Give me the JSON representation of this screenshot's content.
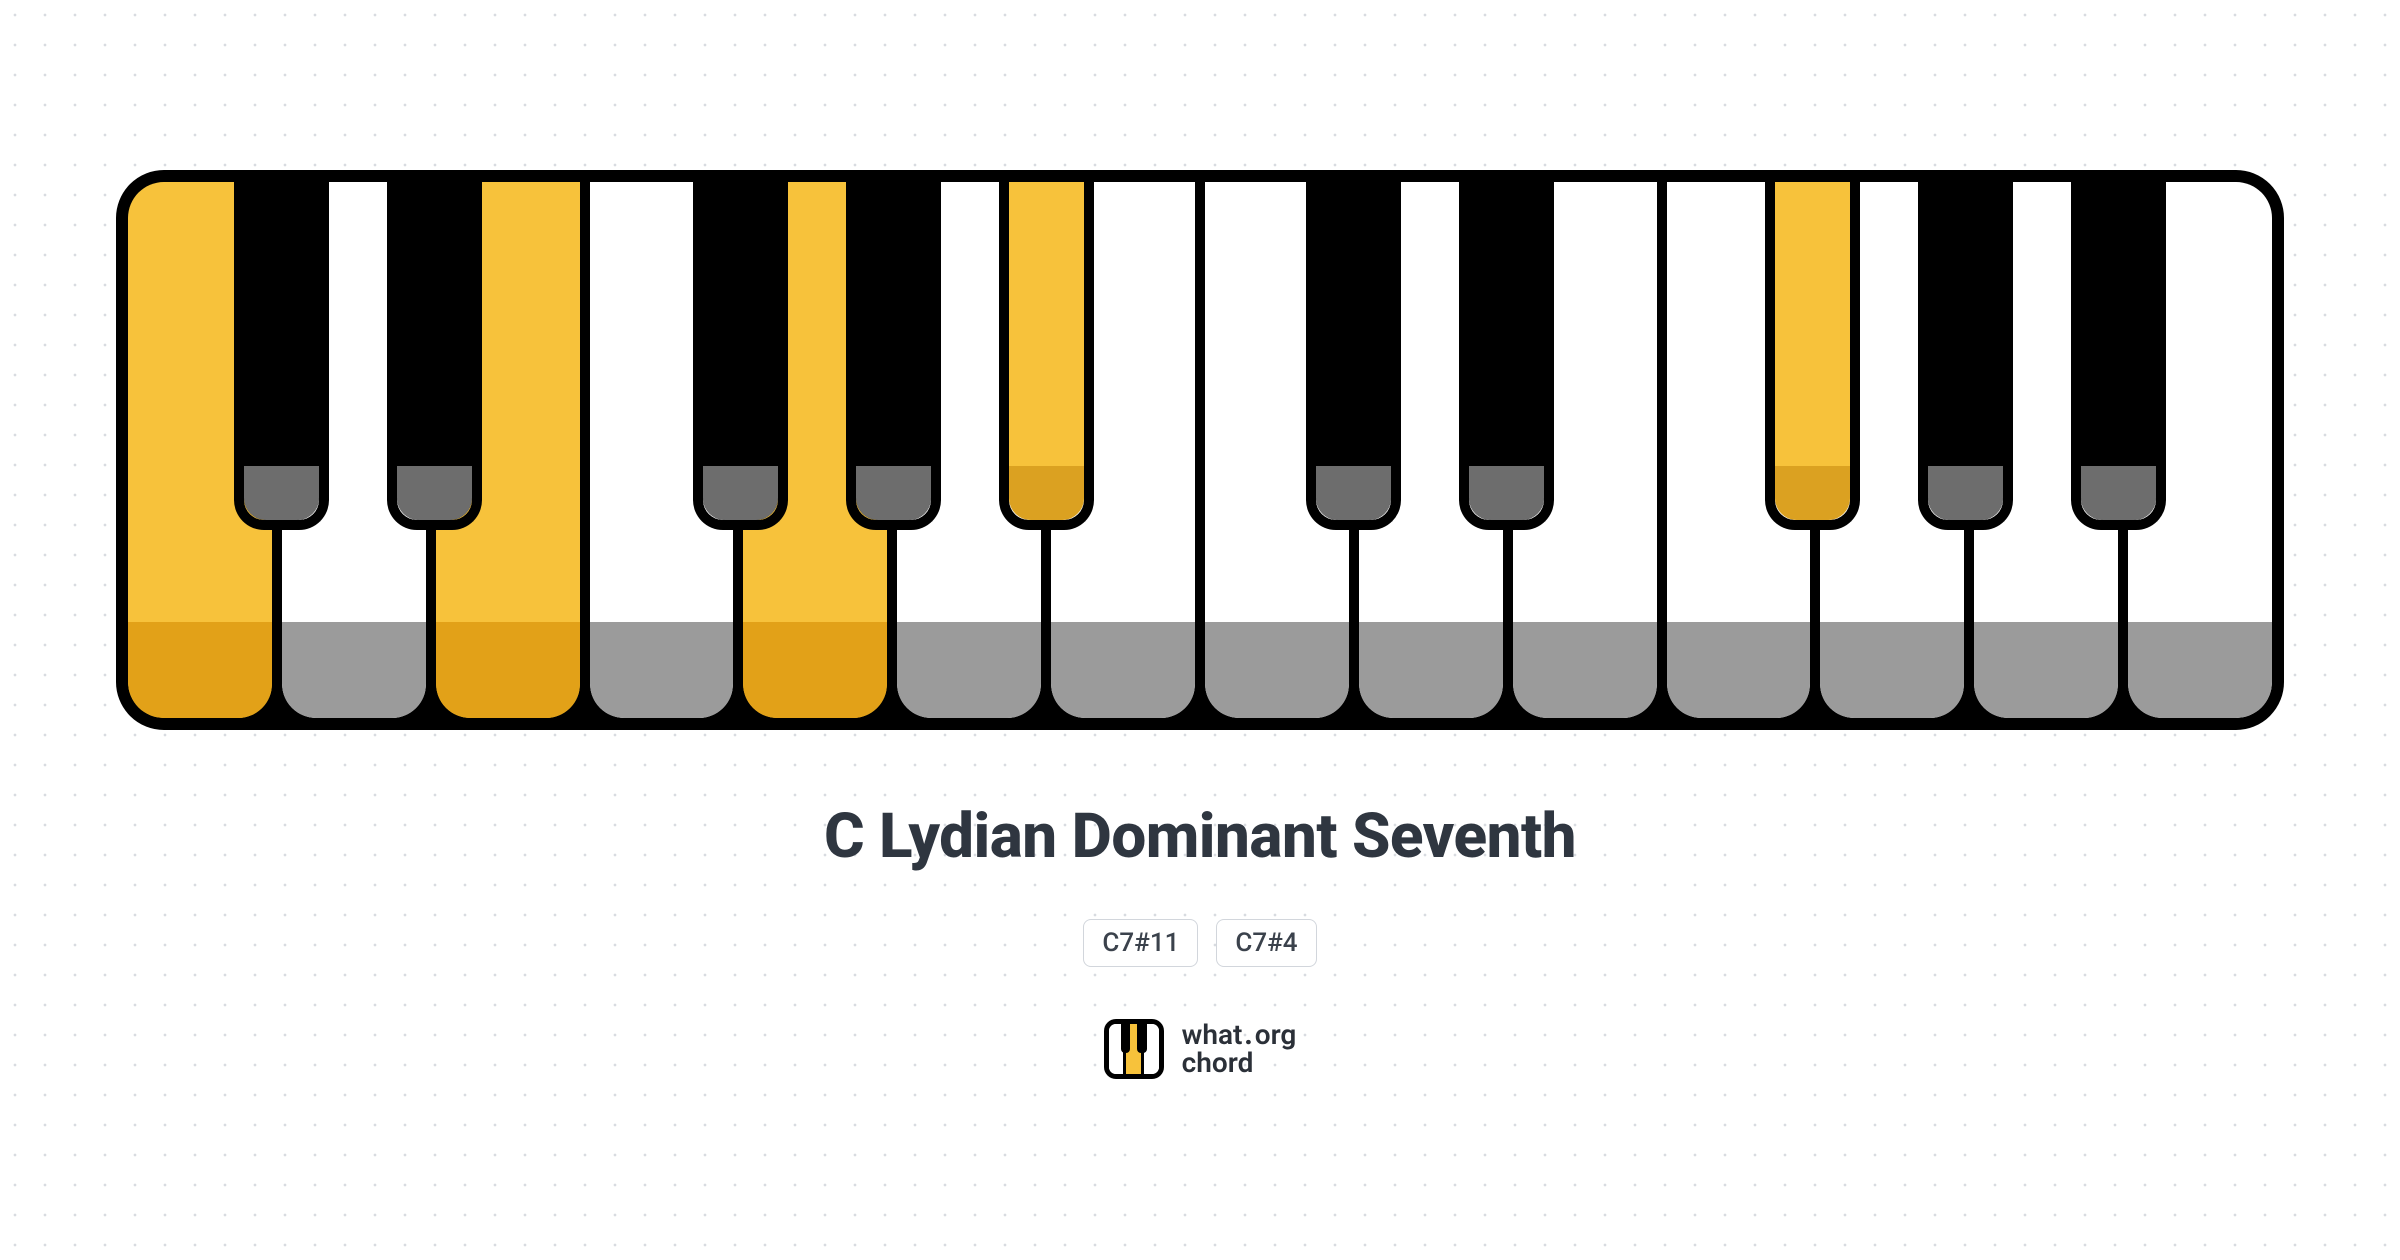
{
  "keyboard": {
    "type": "piano-keyboard",
    "border_color": "#000000",
    "border_width": 12,
    "border_radius": 48,
    "white_key_count": 14,
    "black_key_height_pct": 65,
    "white_shade_height_pct": 18,
    "black_shade_height_pct": 16,
    "colors": {
      "white_default_face": "#ffffff",
      "white_default_shade": "#9b9b9b",
      "white_hl_face": "#f7c23b",
      "white_hl_shade": "#e2a118",
      "black_default_face": "#000000",
      "black_default_shade": "#6d6d6d",
      "black_hl_face": "#f7c23b",
      "black_hl_shade": "#dba121"
    },
    "white_keys": [
      {
        "index": 0,
        "highlighted": true
      },
      {
        "index": 1,
        "highlighted": false
      },
      {
        "index": 2,
        "highlighted": true
      },
      {
        "index": 3,
        "highlighted": false
      },
      {
        "index": 4,
        "highlighted": true
      },
      {
        "index": 5,
        "highlighted": false
      },
      {
        "index": 6,
        "highlighted": false
      },
      {
        "index": 7,
        "highlighted": false
      },
      {
        "index": 8,
        "highlighted": false
      },
      {
        "index": 9,
        "highlighted": false
      },
      {
        "index": 10,
        "highlighted": false
      },
      {
        "index": 11,
        "highlighted": false
      },
      {
        "index": 12,
        "highlighted": false
      },
      {
        "index": 13,
        "highlighted": false
      }
    ],
    "black_keys": [
      {
        "between": [
          0,
          1
        ],
        "highlighted": false
      },
      {
        "between": [
          1,
          2
        ],
        "highlighted": false
      },
      {
        "between": [
          3,
          4
        ],
        "highlighted": false
      },
      {
        "between": [
          4,
          5
        ],
        "highlighted": false
      },
      {
        "between": [
          5,
          6
        ],
        "highlighted": true
      },
      {
        "between": [
          7,
          8
        ],
        "highlighted": false
      },
      {
        "between": [
          8,
          9
        ],
        "highlighted": false
      },
      {
        "between": [
          10,
          11
        ],
        "highlighted": true
      },
      {
        "between": [
          11,
          12
        ],
        "highlighted": false
      },
      {
        "between": [
          12,
          13
        ],
        "highlighted": false
      }
    ],
    "black_key_width_ratio": 0.62
  },
  "chord": {
    "title": "C Lydian Dominant Seventh",
    "title_color": "#2f3640",
    "title_fontsize": 62,
    "symbols": [
      "C7#11",
      "C7#4"
    ]
  },
  "brand": {
    "line1_a": "what",
    "line1_dot": ".",
    "line1_b": "org",
    "line2": "chord",
    "text_color": "#2b3038",
    "icon": {
      "white_highlight_index": 1,
      "highlight_color": "#f7c23b"
    }
  },
  "background": {
    "color": "#ffffff",
    "dot_color": "#d8dbe0",
    "dot_spacing": 30
  }
}
